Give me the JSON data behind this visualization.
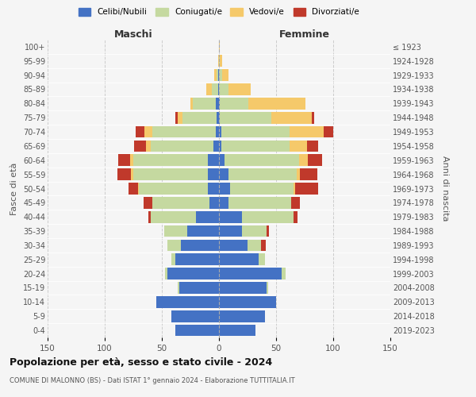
{
  "age_groups": [
    "0-4",
    "5-9",
    "10-14",
    "15-19",
    "20-24",
    "25-29",
    "30-34",
    "35-39",
    "40-44",
    "45-49",
    "50-54",
    "55-59",
    "60-64",
    "65-69",
    "70-74",
    "75-79",
    "80-84",
    "85-89",
    "90-94",
    "95-99",
    "100+"
  ],
  "birth_years": [
    "2019-2023",
    "2014-2018",
    "2009-2013",
    "2004-2008",
    "1999-2003",
    "1994-1998",
    "1989-1993",
    "1984-1988",
    "1979-1983",
    "1974-1978",
    "1969-1973",
    "1964-1968",
    "1959-1963",
    "1954-1958",
    "1949-1953",
    "1944-1948",
    "1939-1943",
    "1934-1938",
    "1929-1933",
    "1924-1928",
    "≤ 1923"
  ],
  "males": {
    "celibe": [
      38,
      42,
      55,
      35,
      45,
      38,
      33,
      28,
      20,
      8,
      10,
      10,
      10,
      5,
      3,
      2,
      3,
      1,
      1,
      0,
      0
    ],
    "coniugato": [
      0,
      0,
      0,
      1,
      2,
      4,
      12,
      20,
      40,
      50,
      60,
      65,
      65,
      55,
      55,
      30,
      20,
      5,
      1,
      0,
      0
    ],
    "vedovo": [
      0,
      0,
      0,
      0,
      0,
      0,
      0,
      0,
      0,
      0,
      1,
      2,
      3,
      4,
      7,
      4,
      2,
      5,
      2,
      1,
      0
    ],
    "divorziato": [
      0,
      0,
      0,
      0,
      0,
      0,
      0,
      0,
      2,
      8,
      8,
      12,
      10,
      10,
      8,
      2,
      0,
      0,
      0,
      0,
      0
    ]
  },
  "females": {
    "nubile": [
      32,
      40,
      50,
      42,
      55,
      35,
      25,
      20,
      20,
      8,
      10,
      8,
      5,
      2,
      2,
      1,
      1,
      0,
      0,
      0,
      0
    ],
    "coniugata": [
      0,
      0,
      0,
      1,
      3,
      5,
      12,
      22,
      45,
      55,
      55,
      60,
      65,
      60,
      60,
      45,
      25,
      8,
      3,
      1,
      0
    ],
    "vedova": [
      0,
      0,
      0,
      0,
      0,
      0,
      0,
      0,
      0,
      0,
      2,
      3,
      8,
      15,
      30,
      35,
      50,
      20,
      5,
      2,
      1
    ],
    "divorziata": [
      0,
      0,
      0,
      0,
      0,
      0,
      4,
      2,
      4,
      8,
      20,
      15,
      12,
      10,
      8,
      2,
      0,
      0,
      0,
      0,
      0
    ]
  },
  "colors": {
    "celibe": "#4472c4",
    "coniugato": "#c5d9a0",
    "vedovo": "#f5c96a",
    "divorziato": "#c0392b"
  },
  "xlim": 150,
  "title": "Popolazione per età, sesso e stato civile - 2024",
  "subtitle": "COMUNE DI MALONNO (BS) - Dati ISTAT 1° gennaio 2024 - Elaborazione TUTTITALIA.IT",
  "xlabel_left": "Maschi",
  "xlabel_right": "Femmine",
  "ylabel": "Fasce di età",
  "ylabel_right": "Anni di nascita",
  "legend_labels": [
    "Celibi/Nubili",
    "Coniugati/e",
    "Vedovi/e",
    "Divorziati/e"
  ],
  "background_color": "#f5f5f5"
}
